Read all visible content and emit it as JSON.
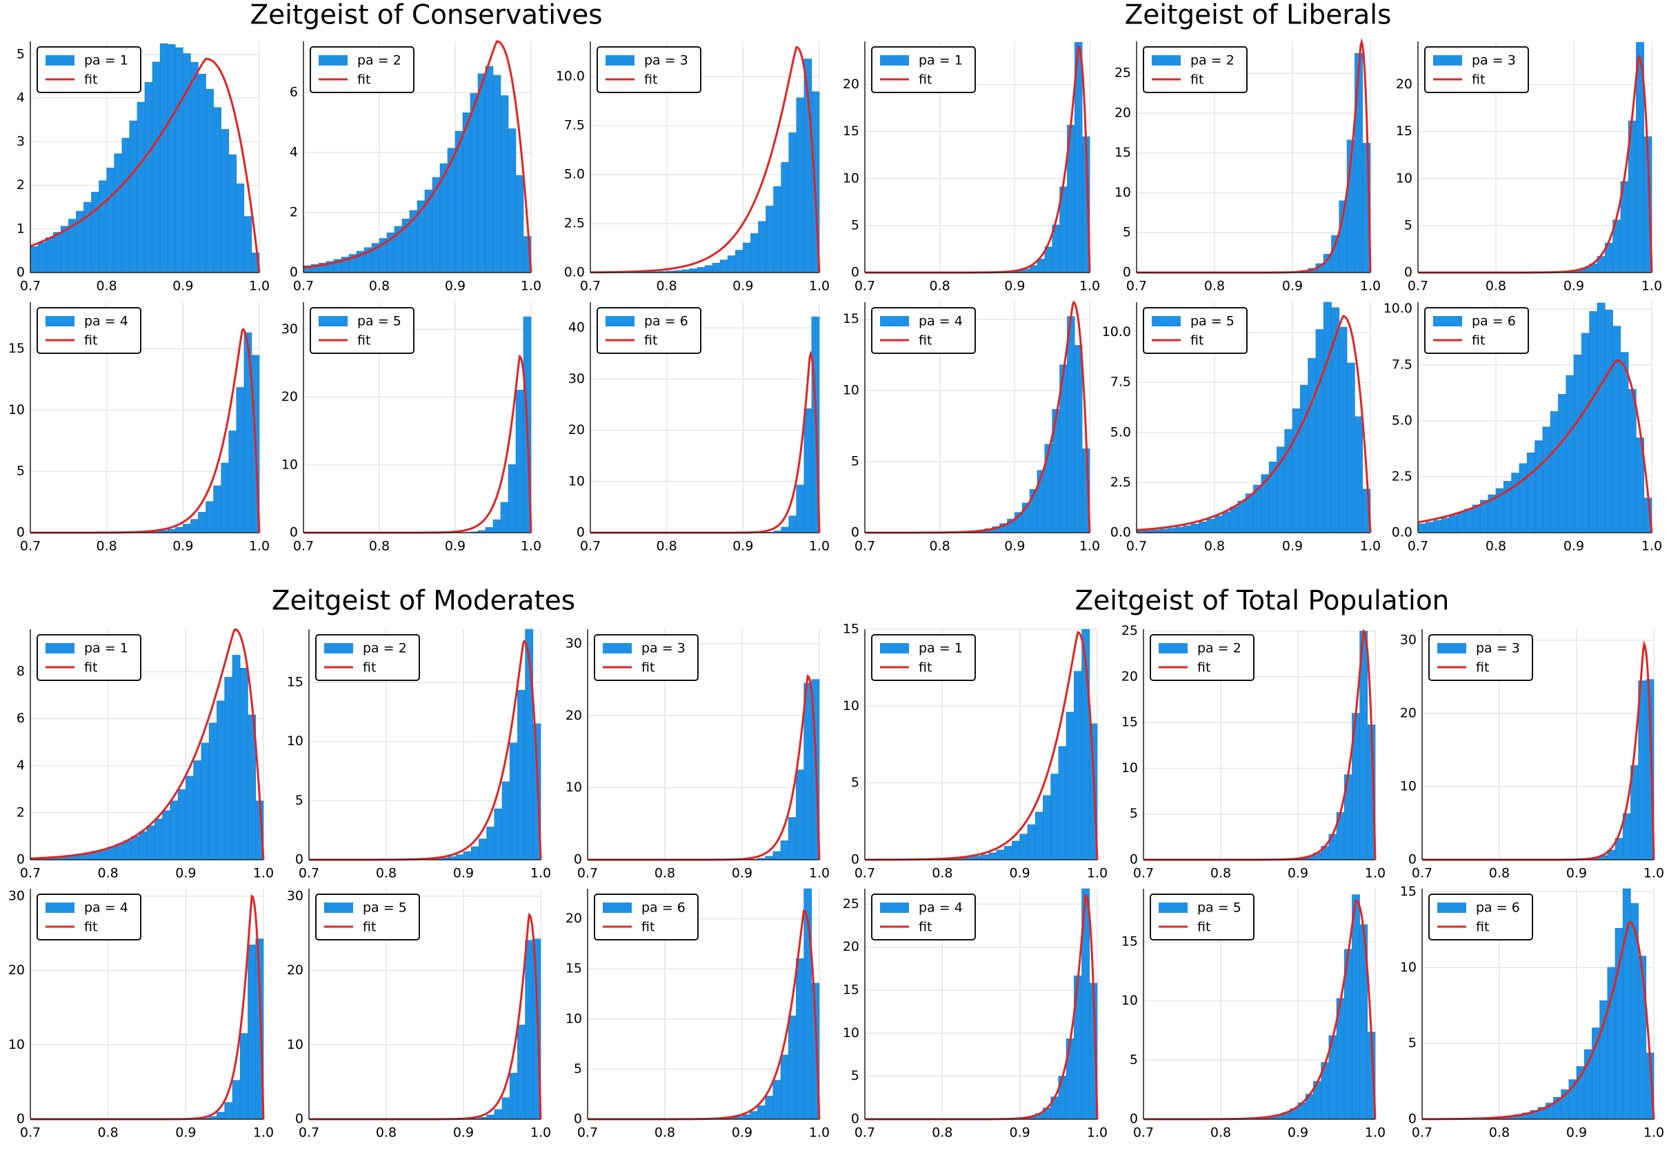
{
  "colors": {
    "hist": "#1e90e6",
    "hist_edge": "#137fcf",
    "fit": "#e02424",
    "grid": "#e6e6e6",
    "axis": "#222222"
  },
  "legend": {
    "series_label_prefix": "pa = ",
    "fit_label": "fit"
  },
  "chart_data": [
    {
      "group": "Zeitgeist of Conservatives",
      "title": "Zeitgeist of Conservatives",
      "type": "histogram+line",
      "xlim": [
        0.7,
        1.0
      ],
      "xticks": [
        "0.7",
        "0.8",
        "0.9",
        "1.0"
      ],
      "panels": [
        {
          "pa": 1,
          "legend_label": "pa = 1",
          "ylim": [
            0,
            5.3
          ],
          "yticks": [
            0,
            1,
            2,
            3,
            4,
            5
          ],
          "ytick_labels": [
            "0",
            "1",
            "2",
            "3",
            "4",
            "5"
          ],
          "hist_mode": 0.875,
          "hist_peak": 5.25,
          "hist_spread": 4.2,
          "fit_mode": 0.93,
          "fit_peak": 4.9,
          "fit_spread": 3.0
        },
        {
          "pa": 2,
          "legend_label": "pa = 2",
          "ylim": [
            0,
            7.7
          ],
          "yticks": [
            0,
            2,
            4,
            6
          ],
          "ytick_labels": [
            "0",
            "2",
            "4",
            "6"
          ],
          "hist_mode": 0.94,
          "hist_peak": 6.9,
          "hist_spread": 4.5,
          "fit_mode": 0.955,
          "fit_peak": 7.7,
          "fit_spread": 4.6
        },
        {
          "pa": 3,
          "legend_label": "pa = 3",
          "ylim": [
            0,
            11.8
          ],
          "yticks": [
            0,
            2.5,
            5,
            7.5,
            10
          ],
          "ytick_labels": [
            "0.0",
            "2.5",
            "5.0",
            "7.5",
            "10.0"
          ],
          "hist_mode": 0.99,
          "hist_peak": 11.8,
          "hist_spread": 8,
          "fit_mode": 0.97,
          "fit_peak": 11.5,
          "fit_spread": 7.5
        },
        {
          "pa": 4,
          "legend_label": "pa = 4",
          "ylim": [
            0,
            18.8
          ],
          "yticks": [
            0,
            5,
            10,
            15
          ],
          "ytick_labels": [
            "0",
            "5",
            "10",
            "15"
          ],
          "hist_mode": 0.99,
          "hist_peak": 18.5,
          "hist_spread": 12,
          "fit_mode": 0.978,
          "fit_peak": 16.6,
          "fit_spread": 12
        },
        {
          "pa": 5,
          "legend_label": "pa = 5",
          "ylim": [
            0,
            34
          ],
          "yticks": [
            0,
            10,
            20,
            30
          ],
          "ytick_labels": [
            "0",
            "10",
            "20",
            "30"
          ],
          "hist_mode": 0.993,
          "hist_peak": 34,
          "hist_spread": 24,
          "fit_mode": 0.985,
          "fit_peak": 26,
          "fit_spread": 18
        },
        {
          "pa": 6,
          "legend_label": "pa = 6",
          "ylim": [
            0,
            45
          ],
          "yticks": [
            0,
            10,
            20,
            30,
            40
          ],
          "ytick_labels": [
            "0",
            "10",
            "20",
            "30",
            "40"
          ],
          "hist_mode": 0.993,
          "hist_peak": 45,
          "hist_spread": 30,
          "fit_mode": 0.988,
          "fit_peak": 35,
          "fit_spread": 24
        }
      ]
    },
    {
      "group": "Zeitgeist of Liberals",
      "title": "Zeitgeist of Liberals",
      "type": "histogram+line",
      "xlim": [
        0.7,
        1.0
      ],
      "xticks": [
        "0.7",
        "0.8",
        "0.9",
        "1.0"
      ],
      "panels": [
        {
          "pa": 1,
          "legend_label": "pa = 1",
          "ylim": [
            0,
            24.6
          ],
          "yticks": [
            0,
            5,
            10,
            15,
            20
          ],
          "ytick_labels": [
            "0",
            "5",
            "10",
            "15",
            "20"
          ],
          "hist_mode": 0.985,
          "hist_peak": 24.5,
          "hist_spread": 18,
          "fit_mode": 0.985,
          "fit_peak": 24,
          "fit_spread": 17
        },
        {
          "pa": 2,
          "legend_label": "pa = 2",
          "ylim": [
            0,
            29
          ],
          "yticks": [
            0,
            5,
            10,
            15,
            20,
            25
          ],
          "ytick_labels": [
            "0",
            "5",
            "10",
            "15",
            "20",
            "25"
          ],
          "hist_mode": 0.985,
          "hist_peak": 27.5,
          "hist_spread": 20,
          "fit_mode": 0.988,
          "fit_peak": 29,
          "fit_spread": 21
        },
        {
          "pa": 3,
          "legend_label": "pa = 3",
          "ylim": [
            0,
            24.6
          ],
          "yticks": [
            0,
            5,
            10,
            15,
            20
          ],
          "ytick_labels": [
            "0",
            "5",
            "10",
            "15",
            "20"
          ],
          "hist_mode": 0.985,
          "hist_peak": 24.5,
          "hist_spread": 17,
          "fit_mode": 0.983,
          "fit_peak": 23,
          "fit_spread": 17
        },
        {
          "pa": 4,
          "legend_label": "pa = 4",
          "ylim": [
            0,
            16.2
          ],
          "yticks": [
            0,
            5,
            10,
            15
          ],
          "ytick_labels": [
            "0",
            "5",
            "10",
            "15"
          ],
          "hist_mode": 0.975,
          "hist_peak": 15.2,
          "hist_spread": 11,
          "fit_mode": 0.978,
          "fit_peak": 16.2,
          "fit_spread": 11.5
        },
        {
          "pa": 5,
          "legend_label": "pa = 5",
          "ylim": [
            0,
            11.5
          ],
          "yticks": [
            0,
            2.5,
            5,
            7.5,
            10
          ],
          "ytick_labels": [
            "0.0",
            "2.5",
            "5.0",
            "7.5",
            "10.0"
          ],
          "hist_mode": 0.945,
          "hist_peak": 11.5,
          "hist_spread": 6,
          "fit_mode": 0.965,
          "fit_peak": 10.8,
          "fit_spread": 5
        },
        {
          "pa": 6,
          "legend_label": "pa = 6",
          "ylim": [
            0,
            10.3
          ],
          "yticks": [
            0,
            2.5,
            5,
            7.5,
            10
          ],
          "ytick_labels": [
            "0.0",
            "2.5",
            "5.0",
            "7.5",
            "10.0"
          ],
          "hist_mode": 0.93,
          "hist_peak": 10.3,
          "hist_spread": 4.5,
          "fit_mode": 0.955,
          "fit_peak": 7.7,
          "fit_spread": 3.5
        }
      ]
    },
    {
      "group": "Zeitgeist of Moderates",
      "title": "Zeitgeist of Moderates",
      "type": "histogram+line",
      "xlim": [
        0.7,
        1.0
      ],
      "xticks": [
        "0.7",
        "0.8",
        "0.9",
        "1.0"
      ],
      "panels": [
        {
          "pa": 1,
          "legend_label": "pa = 1",
          "ylim": [
            0,
            9.8
          ],
          "yticks": [
            0,
            2,
            4,
            6,
            8
          ],
          "ytick_labels": [
            "0",
            "2",
            "4",
            "6",
            "8"
          ],
          "hist_mode": 0.965,
          "hist_peak": 8.7,
          "hist_spread": 5.5,
          "fit_mode": 0.963,
          "fit_peak": 9.8,
          "fit_spread": 5.8
        },
        {
          "pa": 2,
          "legend_label": "pa = 2",
          "ylim": [
            0,
            19.5
          ],
          "yticks": [
            0,
            5,
            10,
            15
          ],
          "ytick_labels": [
            "0",
            "5",
            "10",
            "15"
          ],
          "hist_mode": 0.985,
          "hist_peak": 19.5,
          "hist_spread": 13,
          "fit_mode": 0.978,
          "fit_peak": 18.5,
          "fit_spread": 12.5
        },
        {
          "pa": 3,
          "legend_label": "pa = 3",
          "ylim": [
            0,
            32
          ],
          "yticks": [
            0,
            10,
            20,
            30
          ],
          "ytick_labels": [
            "0",
            "10",
            "20",
            "30"
          ],
          "hist_mode": 0.99,
          "hist_peak": 32,
          "hist_spread": 23,
          "fit_mode": 0.985,
          "fit_peak": 25.5,
          "fit_spread": 19
        },
        {
          "pa": 4,
          "legend_label": "pa = 4",
          "ylim": [
            0,
            31
          ],
          "yticks": [
            0,
            10,
            20,
            30
          ],
          "ytick_labels": [
            "0",
            "10",
            "20",
            "30"
          ],
          "hist_mode": 0.99,
          "hist_peak": 31,
          "hist_spread": 24,
          "fit_mode": 0.985,
          "fit_peak": 30,
          "fit_spread": 23
        },
        {
          "pa": 5,
          "legend_label": "pa = 5",
          "ylim": [
            0,
            31
          ],
          "yticks": [
            0,
            10,
            20,
            30
          ],
          "ytick_labels": [
            "0",
            "10",
            "20",
            "30"
          ],
          "hist_mode": 0.99,
          "hist_peak": 31,
          "hist_spread": 22,
          "fit_mode": 0.985,
          "fit_peak": 27.5,
          "fit_spread": 20
        },
        {
          "pa": 6,
          "legend_label": "pa = 6",
          "ylim": [
            0,
            23
          ],
          "yticks": [
            0,
            5,
            10,
            15,
            20
          ],
          "ytick_labels": [
            "0",
            "5",
            "10",
            "15",
            "20"
          ],
          "hist_mode": 0.985,
          "hist_peak": 23,
          "hist_spread": 15,
          "fit_mode": 0.98,
          "fit_peak": 20.8,
          "fit_spread": 14.5
        }
      ]
    },
    {
      "group": "Zeitgeist of Total Population",
      "title": "Zeitgeist of Total Population",
      "type": "histogram+line",
      "xlim": [
        0.7,
        1.0
      ],
      "xticks": [
        "0.7",
        "0.8",
        "0.9",
        "1.0"
      ],
      "panels": [
        {
          "pa": 1,
          "legend_label": "pa = 1",
          "ylim": [
            0,
            15
          ],
          "yticks": [
            0,
            5,
            10,
            15
          ],
          "ytick_labels": [
            "0",
            "5",
            "10",
            "15"
          ],
          "hist_mode": 0.985,
          "hist_peak": 15,
          "hist_spread": 9,
          "fit_mode": 0.975,
          "fit_peak": 14.8,
          "fit_spread": 9
        },
        {
          "pa": 2,
          "legend_label": "pa = 2",
          "ylim": [
            0,
            25.2
          ],
          "yticks": [
            0,
            5,
            10,
            15,
            20,
            25
          ],
          "ytick_labels": [
            "0",
            "5",
            "10",
            "15",
            "20",
            "25"
          ],
          "hist_mode": 0.985,
          "hist_peak": 25,
          "hist_spread": 18,
          "fit_mode": 0.985,
          "fit_peak": 25,
          "fit_spread": 18
        },
        {
          "pa": 3,
          "legend_label": "pa = 3",
          "ylim": [
            0,
            31.5
          ],
          "yticks": [
            0,
            10,
            20,
            30
          ],
          "ytick_labels": [
            "0",
            "10",
            "20",
            "30"
          ],
          "hist_mode": 0.99,
          "hist_peak": 31.5,
          "hist_spread": 22,
          "fit_mode": 0.987,
          "fit_peak": 29.5,
          "fit_spread": 22
        },
        {
          "pa": 4,
          "legend_label": "pa = 4",
          "ylim": [
            0,
            26.8
          ],
          "yticks": [
            0,
            5,
            10,
            15,
            20,
            25
          ],
          "ytick_labels": [
            "0",
            "5",
            "10",
            "15",
            "20",
            "25"
          ],
          "hist_mode": 0.985,
          "hist_peak": 26.8,
          "hist_spread": 19,
          "fit_mode": 0.985,
          "fit_peak": 26,
          "fit_spread": 19
        },
        {
          "pa": 5,
          "legend_label": "pa = 5",
          "ylim": [
            0,
            19.5
          ],
          "yticks": [
            0,
            5,
            10,
            15
          ],
          "ytick_labels": [
            "0",
            "5",
            "10",
            "15"
          ],
          "hist_mode": 0.975,
          "hist_peak": 19,
          "hist_spread": 12,
          "fit_mode": 0.975,
          "fit_peak": 18.5,
          "fit_spread": 12
        },
        {
          "pa": 6,
          "legend_label": "pa = 6",
          "ylim": [
            0,
            15.2
          ],
          "yticks": [
            0,
            5,
            10,
            15
          ],
          "ytick_labels": [
            "0",
            "5",
            "10",
            "15"
          ],
          "hist_mode": 0.965,
          "hist_peak": 15.2,
          "hist_spread": 8.5,
          "fit_mode": 0.968,
          "fit_peak": 13,
          "fit_spread": 8.3
        }
      ]
    }
  ]
}
